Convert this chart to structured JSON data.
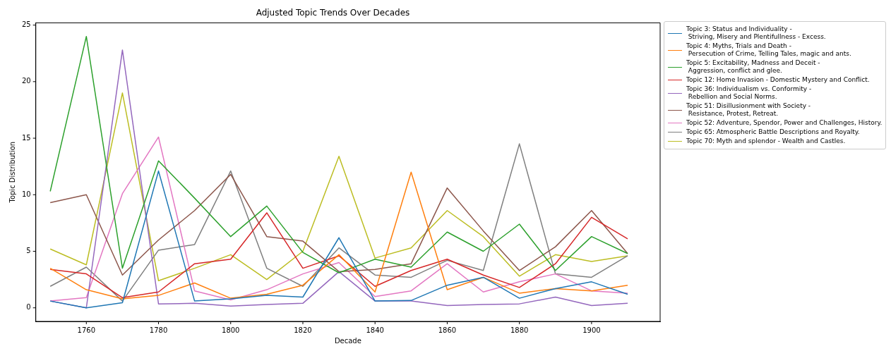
{
  "chart_data": {
    "type": "line",
    "title": "Adjusted Topic Trends Over Decades",
    "xlabel": "Decade",
    "ylabel": "Topic Distribution",
    "x": [
      1750,
      1760,
      1770,
      1780,
      1790,
      1800,
      1810,
      1820,
      1830,
      1840,
      1850,
      1860,
      1870,
      1880,
      1890,
      1900,
      1910
    ],
    "xlim": [
      1746,
      1919
    ],
    "xticks": [
      1760,
      1780,
      1800,
      1820,
      1840,
      1860,
      1880,
      1900
    ],
    "ylim": [
      -1.2,
      25.2
    ],
    "yticks": [
      0,
      5,
      10,
      15,
      20,
      25
    ],
    "grid": false,
    "legend": "top right",
    "marker": "none",
    "line_style": "solid",
    "series": [
      {
        "name": "Topic 3: Status and Individuality -\n Striving, Misery and Plentifullness - Excess.",
        "color": "#1f77b4",
        "values": [
          0.6,
          0.0,
          0.45,
          12.1,
          0.6,
          0.8,
          1.1,
          0.95,
          6.2,
          0.6,
          0.65,
          2.0,
          2.7,
          0.85,
          1.7,
          2.3,
          1.2
        ]
      },
      {
        "name": "Topic 4: Myths, Trials and Death -\n Persecution of Crime, Telling Tales, magic and ants.",
        "color": "#ff7f0e",
        "values": [
          3.5,
          1.6,
          0.8,
          1.1,
          2.2,
          0.85,
          1.2,
          2.0,
          4.7,
          1.4,
          12.0,
          1.6,
          2.7,
          1.3,
          1.7,
          1.5,
          2.0
        ]
      },
      {
        "name": "Topic 5: Excitability, Madness and Deceit -\n Aggression, conflict and glee.",
        "color": "#2ca02c",
        "values": [
          10.3,
          24.0,
          3.5,
          13.0,
          9.7,
          6.3,
          9.0,
          4.9,
          3.1,
          4.3,
          3.6,
          6.7,
          5.0,
          7.4,
          3.3,
          6.3,
          4.8
        ]
      },
      {
        "name": "Topic 12: Home Invasion - Domestic Mystery and Conflict.",
        "color": "#d62728",
        "values": [
          3.4,
          3.0,
          0.9,
          1.4,
          3.9,
          4.3,
          8.4,
          3.5,
          4.6,
          1.9,
          3.3,
          4.3,
          2.9,
          1.8,
          3.9,
          8.0,
          6.1
        ]
      },
      {
        "name": "Topic 36: Individualism vs. Conformity -\n Rebellion and Social Norms.",
        "color": "#9467bd",
        "values": [
          0.6,
          0.0,
          22.8,
          0.35,
          0.4,
          0.15,
          0.3,
          0.4,
          3.2,
          0.6,
          0.6,
          0.2,
          0.3,
          0.35,
          0.95,
          0.2,
          0.4
        ]
      },
      {
        "name": "Topic 51: Disillusionment with Society -\n Resistance, Protest, Retreat.",
        "color": "#8c564b",
        "values": [
          9.3,
          10.0,
          2.9,
          6.0,
          8.6,
          11.8,
          6.3,
          5.9,
          3.2,
          3.4,
          3.9,
          10.6,
          6.8,
          3.3,
          5.4,
          8.6,
          4.8
        ]
      },
      {
        "name": "Topic 52: Adventure, Spendor, Power and Challenges, History.",
        "color": "#e377c2",
        "values": [
          0.6,
          0.9,
          10.1,
          15.1,
          1.5,
          0.7,
          1.6,
          3.0,
          4.0,
          1.0,
          1.5,
          3.9,
          1.4,
          2.3,
          3.0,
          1.5,
          1.3
        ]
      },
      {
        "name": "Topic 65: Atmospheric Battle Descriptions and Royalty.",
        "color": "#7f7f7f",
        "values": [
          1.9,
          3.6,
          0.6,
          5.1,
          5.6,
          12.1,
          3.5,
          1.9,
          5.3,
          2.9,
          2.7,
          4.2,
          3.3,
          14.5,
          3.0,
          2.7,
          4.6
        ]
      },
      {
        "name": "Topic 70: Myth and splendor - Wealth and Castles.",
        "color": "#bcbd22",
        "values": [
          5.2,
          3.8,
          19.0,
          2.4,
          3.5,
          4.7,
          2.5,
          5.0,
          13.4,
          4.4,
          5.3,
          8.6,
          6.3,
          2.8,
          4.7,
          4.1,
          4.6
        ]
      }
    ]
  }
}
